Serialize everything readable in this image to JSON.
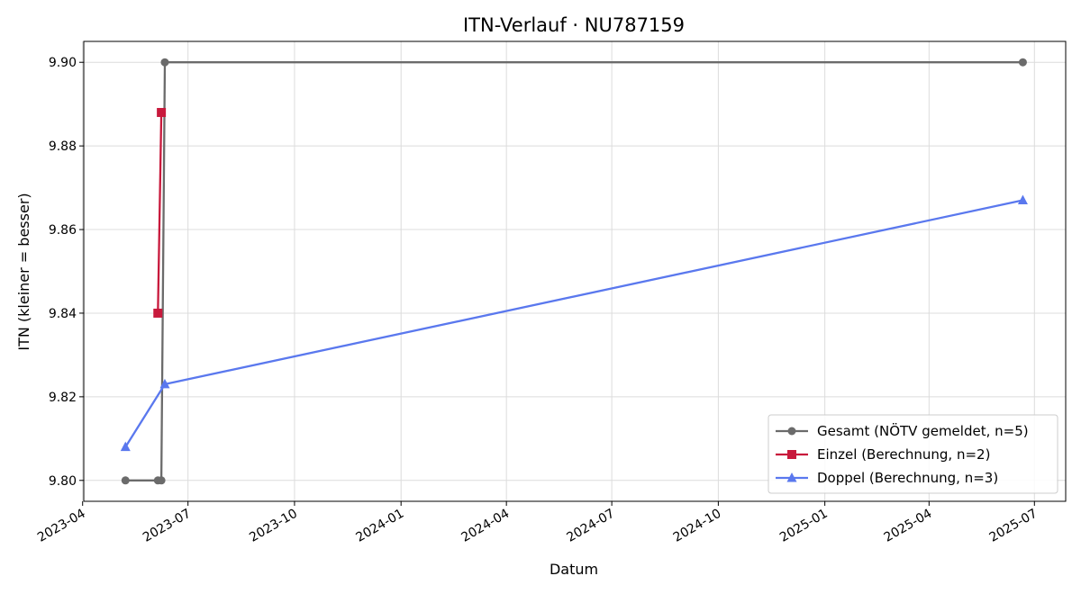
{
  "chart_data": {
    "type": "line",
    "title": "ITN-Verlauf · NU787159",
    "xlabel": "Datum",
    "ylabel": "ITN  (kleiner = besser)",
    "x_type": "date",
    "xlim": [
      "2023-04-02",
      "2025-07-28"
    ],
    "ylim": [
      9.795,
      9.905
    ],
    "xticks": [
      "2023-04",
      "2023-07",
      "2023-10",
      "2024-01",
      "2024-04",
      "2024-07",
      "2024-10",
      "2025-01",
      "2025-04",
      "2025-07"
    ],
    "yticks": [
      "9.80",
      "9.82",
      "9.84",
      "9.86",
      "9.88",
      "9.90"
    ],
    "grid": true,
    "legend_position": "lower right",
    "series": [
      {
        "name": "Gesamt (NÖTV gemeldet, n=5)",
        "color": "#6b6b6b",
        "marker": "circle",
        "points": [
          {
            "x": "2023-05-08",
            "y": 9.8
          },
          {
            "x": "2023-06-05",
            "y": 9.8
          },
          {
            "x": "2023-06-08",
            "y": 9.8
          },
          {
            "x": "2023-06-11",
            "y": 9.9
          },
          {
            "x": "2025-06-21",
            "y": 9.9
          }
        ]
      },
      {
        "name": "Einzel (Berechnung, n=2)",
        "color": "#c8193c",
        "marker": "square",
        "points": [
          {
            "x": "2023-06-05",
            "y": 9.84
          },
          {
            "x": "2023-06-08",
            "y": 9.888
          }
        ]
      },
      {
        "name": "Doppel (Berechnung, n=3)",
        "color": "#5a78ee",
        "marker": "triangle",
        "points": [
          {
            "x": "2023-05-08",
            "y": 9.808
          },
          {
            "x": "2023-06-11",
            "y": 9.823
          },
          {
            "x": "2025-06-21",
            "y": 9.867
          }
        ]
      }
    ]
  }
}
